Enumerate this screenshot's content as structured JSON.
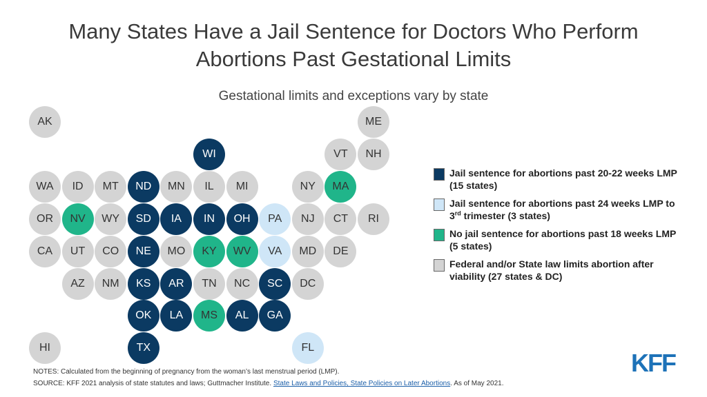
{
  "title_line1": "Many States Have a Jail Sentence for Doctors Who Perform",
  "title_line2": "Abortions Past Gestational Limits",
  "subtitle": "Gestational limits and exceptions vary by state",
  "colors": {
    "jail_20_22": "#0b3a62",
    "jail_24": "#cfe6f7",
    "no_jail_18": "#20b58a",
    "viability": "#d4d4d4"
  },
  "states": [
    {
      "abbr": "AK",
      "row": 0,
      "col": 0,
      "cat": "viab"
    },
    {
      "abbr": "ME",
      "row": 0,
      "col": 10,
      "cat": "viab"
    },
    {
      "abbr": "WI",
      "row": 1,
      "col": 5,
      "cat": "jail2022"
    },
    {
      "abbr": "VT",
      "row": 1,
      "col": 9,
      "cat": "viab"
    },
    {
      "abbr": "NH",
      "row": 1,
      "col": 10,
      "cat": "viab"
    },
    {
      "abbr": "WA",
      "row": 2,
      "col": 0,
      "cat": "viab"
    },
    {
      "abbr": "ID",
      "row": 2,
      "col": 1,
      "cat": "viab"
    },
    {
      "abbr": "MT",
      "row": 2,
      "col": 2,
      "cat": "viab"
    },
    {
      "abbr": "ND",
      "row": 2,
      "col": 3,
      "cat": "jail2022"
    },
    {
      "abbr": "MN",
      "row": 2,
      "col": 4,
      "cat": "viab"
    },
    {
      "abbr": "IL",
      "row": 2,
      "col": 5,
      "cat": "viab"
    },
    {
      "abbr": "MI",
      "row": 2,
      "col": 6,
      "cat": "viab"
    },
    {
      "abbr": "NY",
      "row": 2,
      "col": 8,
      "cat": "viab"
    },
    {
      "abbr": "MA",
      "row": 2,
      "col": 9,
      "cat": "nojail"
    },
    {
      "abbr": "OR",
      "row": 3,
      "col": 0,
      "cat": "viab"
    },
    {
      "abbr": "NV",
      "row": 3,
      "col": 1,
      "cat": "nojail"
    },
    {
      "abbr": "WY",
      "row": 3,
      "col": 2,
      "cat": "viab"
    },
    {
      "abbr": "SD",
      "row": 3,
      "col": 3,
      "cat": "jail2022"
    },
    {
      "abbr": "IA",
      "row": 3,
      "col": 4,
      "cat": "jail2022"
    },
    {
      "abbr": "IN",
      "row": 3,
      "col": 5,
      "cat": "jail2022"
    },
    {
      "abbr": "OH",
      "row": 3,
      "col": 6,
      "cat": "jail2022"
    },
    {
      "abbr": "PA",
      "row": 3,
      "col": 7,
      "cat": "jail24"
    },
    {
      "abbr": "NJ",
      "row": 3,
      "col": 8,
      "cat": "viab"
    },
    {
      "abbr": "CT",
      "row": 3,
      "col": 9,
      "cat": "viab"
    },
    {
      "abbr": "RI",
      "row": 3,
      "col": 10,
      "cat": "viab"
    },
    {
      "abbr": "CA",
      "row": 4,
      "col": 0,
      "cat": "viab"
    },
    {
      "abbr": "UT",
      "row": 4,
      "col": 1,
      "cat": "viab"
    },
    {
      "abbr": "CO",
      "row": 4,
      "col": 2,
      "cat": "viab"
    },
    {
      "abbr": "NE",
      "row": 4,
      "col": 3,
      "cat": "jail2022"
    },
    {
      "abbr": "MO",
      "row": 4,
      "col": 4,
      "cat": "viab"
    },
    {
      "abbr": "KY",
      "row": 4,
      "col": 5,
      "cat": "nojail"
    },
    {
      "abbr": "WV",
      "row": 4,
      "col": 6,
      "cat": "nojail"
    },
    {
      "abbr": "VA",
      "row": 4,
      "col": 7,
      "cat": "jail24"
    },
    {
      "abbr": "MD",
      "row": 4,
      "col": 8,
      "cat": "viab"
    },
    {
      "abbr": "DE",
      "row": 4,
      "col": 9,
      "cat": "viab"
    },
    {
      "abbr": "AZ",
      "row": 5,
      "col": 1,
      "cat": "viab"
    },
    {
      "abbr": "NM",
      "row": 5,
      "col": 2,
      "cat": "viab"
    },
    {
      "abbr": "KS",
      "row": 5,
      "col": 3,
      "cat": "jail2022"
    },
    {
      "abbr": "AR",
      "row": 5,
      "col": 4,
      "cat": "jail2022"
    },
    {
      "abbr": "TN",
      "row": 5,
      "col": 5,
      "cat": "viab"
    },
    {
      "abbr": "NC",
      "row": 5,
      "col": 6,
      "cat": "viab"
    },
    {
      "abbr": "SC",
      "row": 5,
      "col": 7,
      "cat": "jail2022"
    },
    {
      "abbr": "DC",
      "row": 5,
      "col": 8,
      "cat": "viab"
    },
    {
      "abbr": "OK",
      "row": 6,
      "col": 3,
      "cat": "jail2022"
    },
    {
      "abbr": "LA",
      "row": 6,
      "col": 4,
      "cat": "jail2022"
    },
    {
      "abbr": "MS",
      "row": 6,
      "col": 5,
      "cat": "nojail"
    },
    {
      "abbr": "AL",
      "row": 6,
      "col": 6,
      "cat": "jail2022"
    },
    {
      "abbr": "GA",
      "row": 6,
      "col": 7,
      "cat": "jail2022"
    },
    {
      "abbr": "HI",
      "row": 7,
      "col": 0,
      "cat": "viab"
    },
    {
      "abbr": "TX",
      "row": 7,
      "col": 3,
      "cat": "jail2022"
    },
    {
      "abbr": "FL",
      "row": 7,
      "col": 8,
      "cat": "jail24"
    }
  ],
  "legend": {
    "jail_20_22": "Jail sentence for abortions past 20-22 weeks LMP (15 states)",
    "jail_24_a": "Jail sentence for abortions past 24 weeks LMP to 3",
    "jail_24_sup": "rd",
    "jail_24_b": " trimester (3 states)",
    "no_jail_18": "No jail sentence for abortions past 18 weeks LMP (5 states)",
    "viability": "Federal and/or State law limits abortion after viability (27 states & DC)"
  },
  "notes": "NOTES: Calculated from the beginning of pregnancy from the woman’s last menstrual period (LMP).",
  "source_prefix": "SOURCE: KFF 2021 analysis of state statutes and laws; Guttmacher Institute. ",
  "source_link": "State Laws and Policies, State Policies on Later Abortions",
  "source_suffix": ". As of May 2021.",
  "logo": "KFF"
}
